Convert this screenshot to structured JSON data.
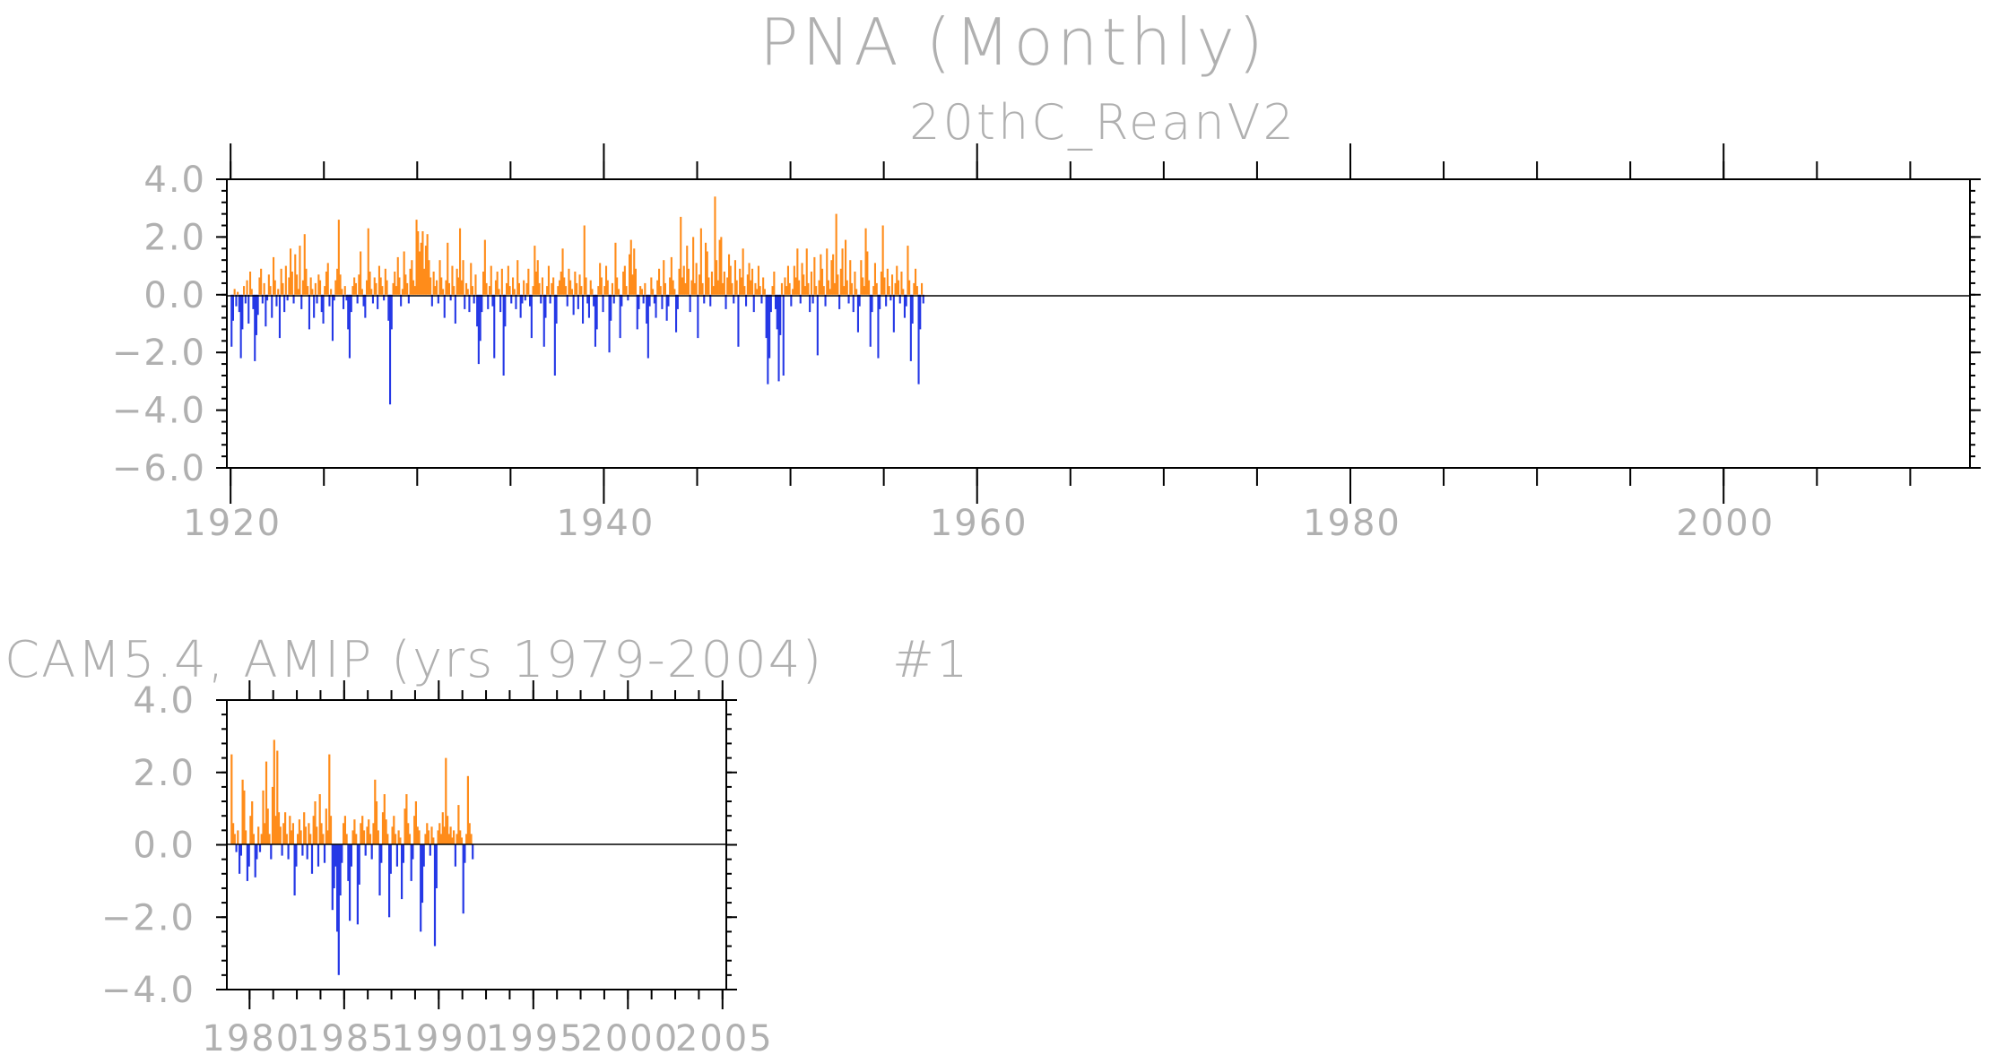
{
  "title": "PNA (Monthly)",
  "colors": {
    "positive": "#ff8c1a",
    "negative": "#2538e6"
  },
  "chart_data": [
    {
      "type": "bar",
      "subtitle": "20thC_ReanV2",
      "x_start": 1920.0,
      "x_step": 0.0833,
      "xlim": [
        1919.8,
        2013.2
      ],
      "ylim": [
        -6.0,
        4.0
      ],
      "yticks": [
        4.0,
        2.0,
        0.0,
        -2.0,
        -4.0,
        -6.0
      ],
      "ytick_labels": [
        "4.0",
        "2.0",
        "0.0",
        "−2.0",
        "−4.0",
        "−6.0"
      ],
      "xticks": [
        1920,
        1940,
        1960,
        1980,
        2000
      ],
      "xtick_labels": [
        "1920",
        "1940",
        "1960",
        "1980",
        "2000"
      ],
      "values": [
        -1.8,
        -0.9,
        0.2,
        -0.4,
        0.1,
        -0.6,
        -2.2,
        -1.2,
        0.3,
        -0.3,
        0.5,
        -1.0,
        0.8,
        0.2,
        -0.5,
        -2.3,
        -1.4,
        -0.7,
        0.6,
        0.9,
        -0.3,
        0.4,
        -1.1,
        -0.2,
        0.7,
        0.3,
        -0.8,
        1.3,
        0.5,
        -0.4,
        0.2,
        -1.5,
        0.9,
        0.4,
        -0.6,
        1.0,
        -0.2,
        0.6,
        1.6,
        0.8,
        -0.3,
        1.4,
        0.7,
        0.2,
        1.7,
        -0.5,
        0.5,
        2.1,
        0.9,
        0.3,
        -1.2,
        0.6,
        0.2,
        -0.8,
        0.4,
        -0.3,
        0.7,
        0.5,
        -0.6,
        -1.0,
        0.3,
        0.8,
        1.1,
        -0.4,
        0.2,
        -1.6,
        -0.2,
        0.5,
        0.9,
        2.6,
        0.7,
        0.2,
        -0.5,
        0.3,
        -0.2,
        -1.2,
        -2.2,
        -0.6,
        0.3,
        0.6,
        0.4,
        -0.3,
        0.7,
        1.5,
        0.2,
        -0.4,
        -0.8,
        0.5,
        2.3,
        0.8,
        0.2,
        -0.3,
        0.6,
        0.4,
        -0.5,
        1.0,
        0.6,
        0.3,
        -0.2,
        0.9,
        0.5,
        -0.9,
        -3.8,
        -1.2,
        0.4,
        0.8,
        0.3,
        1.3,
        0.6,
        -0.4,
        0.2,
        1.5,
        0.7,
        0.4,
        -0.3,
        0.9,
        1.2,
        0.5,
        0.3,
        2.6,
        2.2,
        1.5,
        1.8,
        2.2,
        0.9,
        1.7,
        2.1,
        1.2,
        0.6,
        -0.4,
        0.8,
        0.3,
        0.5,
        -0.3,
        1.2,
        0.6,
        0.2,
        -0.8,
        0.5,
        1.8,
        0.4,
        -0.2,
        1.0,
        0.3,
        -1.0,
        0.9,
        0.6,
        2.3,
        0.5,
        1.2,
        -0.5,
        0.4,
        0.2,
        -0.6,
        1.1,
        0.3,
        -0.3,
        0.7,
        -1.1,
        -2.4,
        -1.6,
        -0.6,
        0.8,
        1.9,
        0.4,
        -0.5,
        0.3,
        1.0,
        -0.4,
        -2.2,
        0.5,
        0.8,
        0.2,
        -0.6,
        0.9,
        -2.8,
        -1.1,
        0.4,
        1.0,
        0.3,
        -0.3,
        0.6,
        0.2,
        -0.5,
        1.2,
        0.4,
        -0.8,
        -0.3,
        0.5,
        -0.2,
        0.4,
        0.9,
        -0.4,
        -1.5,
        0.3,
        1.7,
        0.8,
        1.2,
        0.4,
        -0.3,
        0.6,
        -1.8,
        -0.8,
        0.3,
        1.0,
        -0.3,
        0.4,
        0.6,
        -2.8,
        -1.0,
        0.3,
        0.5,
        0.8,
        1.6,
        0.6,
        0.3,
        -0.4,
        0.9,
        0.5,
        0.2,
        -0.7,
        0.8,
        0.4,
        -0.5,
        0.7,
        0.3,
        -1.0,
        2.4,
        0.6,
        -0.3,
        -0.8,
        0.5,
        0.2,
        -0.4,
        -1.8,
        -1.2,
        0.3,
        1.1,
        0.6,
        -0.6,
        0.3,
        1.0,
        0.5,
        -2.0,
        -0.9,
        0.4,
        -0.3,
        1.8,
        0.6,
        0.2,
        -1.5,
        -0.4,
        0.8,
        1.0,
        0.3,
        -0.2,
        1.4,
        1.9,
        0.7,
        1.6,
        0.9,
        -1.2,
        -0.5,
        0.3,
        0.2,
        -0.3,
        0.4,
        -1.0,
        -2.2,
        -0.4,
        0.6,
        0.2,
        -0.3,
        -0.8,
        0.5,
        0.9,
        0.3,
        -0.5,
        1.2,
        0.4,
        -0.9,
        -0.4,
        0.6,
        1.3,
        0.5,
        0.2,
        -1.3,
        -0.5,
        0.9,
        2.7,
        0.6,
        1.0,
        0.4,
        1.7,
        0.9,
        -0.6,
        0.5,
        2.0,
        0.4,
        1.1,
        -1.5,
        0.7,
        2.3,
        0.4,
        -0.3,
        1.8,
        1.5,
        0.6,
        -0.4,
        0.8,
        0.3,
        3.4,
        1.2,
        0.5,
        1.9,
        2.0,
        0.4,
        0.8,
        -0.5,
        0.6,
        1.4,
        1.0,
        0.4,
        -0.3,
        1.2,
        0.5,
        -1.8,
        0.9,
        0.6,
        1.6,
        0.3,
        -0.4,
        0.7,
        1.1,
        0.5,
        0.9,
        -0.6,
        0.4,
        0.2,
        1.0,
        0.3,
        -0.3,
        0.6,
        0.2,
        -1.5,
        -3.1,
        -2.2,
        -0.6,
        0.3,
        0.8,
        -0.5,
        -1.2,
        -3.0,
        -1.4,
        0.4,
        -2.8,
        0.6,
        0.3,
        1.0,
        0.4,
        -0.4,
        0.2,
        1.0,
        0.6,
        1.6,
        0.5,
        -0.3,
        1.1,
        0.7,
        0.3,
        1.6,
        0.4,
        -0.6,
        0.8,
        -0.3,
        1.3,
        0.3,
        -2.1,
        0.5,
        1.4,
        0.9,
        0.3,
        -0.4,
        1.6,
        0.5,
        0.2,
        1.2,
        1.4,
        0.4,
        2.8,
        0.7,
        -0.5,
        0.9,
        1.6,
        0.3,
        1.9,
        0.5,
        -0.3,
        1.2,
        0.4,
        -0.6,
        0.8,
        0.2,
        -1.3,
        -0.4,
        1.2,
        0.6,
        0.3,
        2.3,
        1.5,
        0.5,
        -1.8,
        -0.6,
        0.3,
        1.1,
        0.4,
        -2.2,
        -0.5,
        0.8,
        2.4,
        0.6,
        -0.4,
        0.9,
        0.3,
        -0.2,
        0.7,
        -1.3,
        0.4,
        1.0,
        0.5,
        -0.3,
        0.8,
        0.2,
        -0.8,
        -0.4,
        1.7,
        0.5,
        -2.3,
        -1.0,
        0.4,
        0.9,
        0.3,
        -3.1,
        -1.2,
        0.4,
        -0.3
      ]
    },
    {
      "type": "bar",
      "title": "CAM5.4, AMIP (yrs 1979-2004)",
      "annotation": "#1",
      "x_start": 1979.0,
      "x_step": 0.0833,
      "xlim": [
        1978.8,
        2005.2
      ],
      "ylim": [
        -4.0,
        4.0
      ],
      "yticks": [
        4.0,
        2.0,
        0.0,
        -2.0,
        -4.0
      ],
      "ytick_labels": [
        "4.0",
        "2.0",
        "0.0",
        "−2.0",
        "−4.0"
      ],
      "xticks": [
        1980,
        1985,
        1990,
        1995,
        2000,
        2005
      ],
      "xtick_labels": [
        "1980",
        "1985",
        "1990",
        "1995",
        "2000",
        "2005"
      ],
      "values": [
        2.5,
        0.6,
        0.3,
        -0.2,
        0.4,
        -0.8,
        -0.3,
        1.8,
        1.5,
        0.4,
        -1.0,
        -0.6,
        0.8,
        1.2,
        0.3,
        -0.9,
        -0.4,
        0.5,
        -0.2,
        0.3,
        1.5,
        0.6,
        2.3,
        1.0,
        0.3,
        -0.4,
        1.6,
        2.9,
        0.8,
        2.6,
        0.9,
        0.5,
        -0.3,
        0.6,
        0.9,
        0.3,
        -0.4,
        0.8,
        0.4,
        0.6,
        -1.4,
        -0.6,
        0.3,
        0.7,
        0.4,
        -0.3,
        0.9,
        0.5,
        -0.4,
        0.6,
        0.3,
        -0.8,
        0.8,
        1.2,
        0.5,
        -0.6,
        1.4,
        0.6,
        0.3,
        -0.5,
        1.0,
        0.4,
        2.5,
        0.8,
        -1.8,
        -1.2,
        -0.6,
        -2.4,
        -3.6,
        -1.4,
        -0.5,
        0.6,
        0.8,
        0.3,
        -1.0,
        -2.1,
        -0.6,
        0.4,
        0.7,
        0.3,
        -2.2,
        -1.1,
        0.6,
        0.8,
        0.4,
        -0.3,
        0.5,
        0.7,
        0.3,
        -0.4,
        0.6,
        1.8,
        1.2,
        0.4,
        -1.4,
        -0.5,
        0.9,
        1.4,
        0.7,
        0.3,
        -2.0,
        -0.8,
        0.5,
        0.8,
        0.3,
        -0.6,
        0.4,
        0.2,
        -1.5,
        -0.5,
        1.0,
        1.4,
        0.6,
        0.3,
        -1.0,
        -0.4,
        0.8,
        1.2,
        0.5,
        0.4,
        -2.4,
        -1.6,
        -0.6,
        0.3,
        0.6,
        0.4,
        -0.3,
        0.5,
        0.2,
        -2.8,
        -1.2,
        0.4,
        0.6,
        0.3,
        0.9,
        0.5,
        2.4,
        0.8,
        0.3,
        0.5,
        0.2,
        0.4,
        -0.6,
        0.3,
        1.1,
        0.4,
        0.2,
        -1.9,
        -0.5,
        0.3,
        1.9,
        0.6,
        0.3,
        -0.4
      ]
    }
  ]
}
